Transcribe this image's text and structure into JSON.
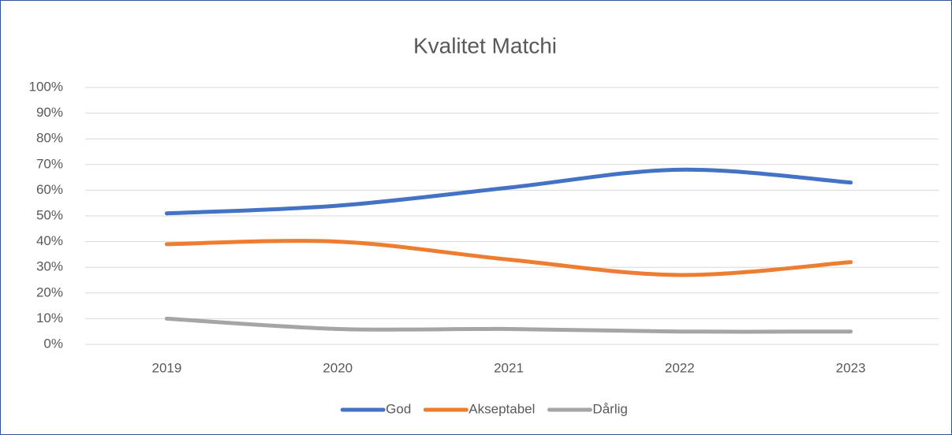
{
  "chart_data": {
    "type": "line",
    "title": "Kvalitet Matchi",
    "categories": [
      "2019",
      "2020",
      "2021",
      "2022",
      "2023"
    ],
    "series": [
      {
        "name": "God",
        "color": "#4472c4",
        "values": [
          51,
          54,
          61,
          68,
          63
        ]
      },
      {
        "name": "Akseptabel",
        "color": "#ed7d31",
        "values": [
          39,
          40,
          33,
          27,
          32
        ]
      },
      {
        "name": "Dårlig",
        "color": "#a5a5a5",
        "values": [
          10,
          6,
          6,
          5,
          5
        ]
      }
    ],
    "ylim": [
      0,
      100
    ],
    "yticks": [
      {
        "value": 0,
        "label": "0%"
      },
      {
        "value": 10,
        "label": "10%"
      },
      {
        "value": 20,
        "label": "20%"
      },
      {
        "value": 30,
        "label": "30%"
      },
      {
        "value": 40,
        "label": "40%"
      },
      {
        "value": 50,
        "label": "50%"
      },
      {
        "value": 60,
        "label": "60%"
      },
      {
        "value": 70,
        "label": "70%"
      },
      {
        "value": 80,
        "label": "80%"
      },
      {
        "value": 90,
        "label": "90%"
      },
      {
        "value": 100,
        "label": "100%"
      }
    ],
    "grid": true,
    "smooth": true,
    "legend": "bottom"
  }
}
